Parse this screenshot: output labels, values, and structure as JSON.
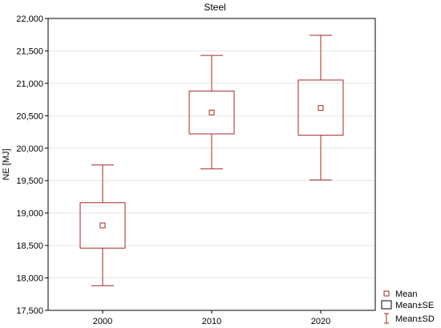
{
  "chart_data": {
    "type": "box",
    "title": "Steel",
    "xlabel": "",
    "ylabel": "NE [MJ]",
    "categories": [
      "2000",
      "2010",
      "2020"
    ],
    "ylim": [
      17500,
      22000
    ],
    "yticks": [
      "17,500",
      "18,000",
      "18,500",
      "19,000",
      "19,500",
      "20,000",
      "20,500",
      "21,000",
      "21,500",
      "22,000"
    ],
    "ytick_values": [
      17500,
      18000,
      18500,
      19000,
      19500,
      20000,
      20500,
      21000,
      21500,
      22000
    ],
    "series": [
      {
        "mean": [
          18810,
          20550,
          20620
        ],
        "se_low": [
          18460,
          20220,
          20200
        ],
        "se_high": [
          19160,
          20880,
          21050
        ],
        "sd_low": [
          17880,
          19680,
          19510
        ],
        "sd_high": [
          19740,
          21430,
          21740
        ]
      }
    ],
    "grid": true,
    "legend_position": "bottom-right",
    "legend": [
      "Mean",
      "Mean±SE",
      "Mean±SD"
    ],
    "color": "#a52a2a"
  }
}
